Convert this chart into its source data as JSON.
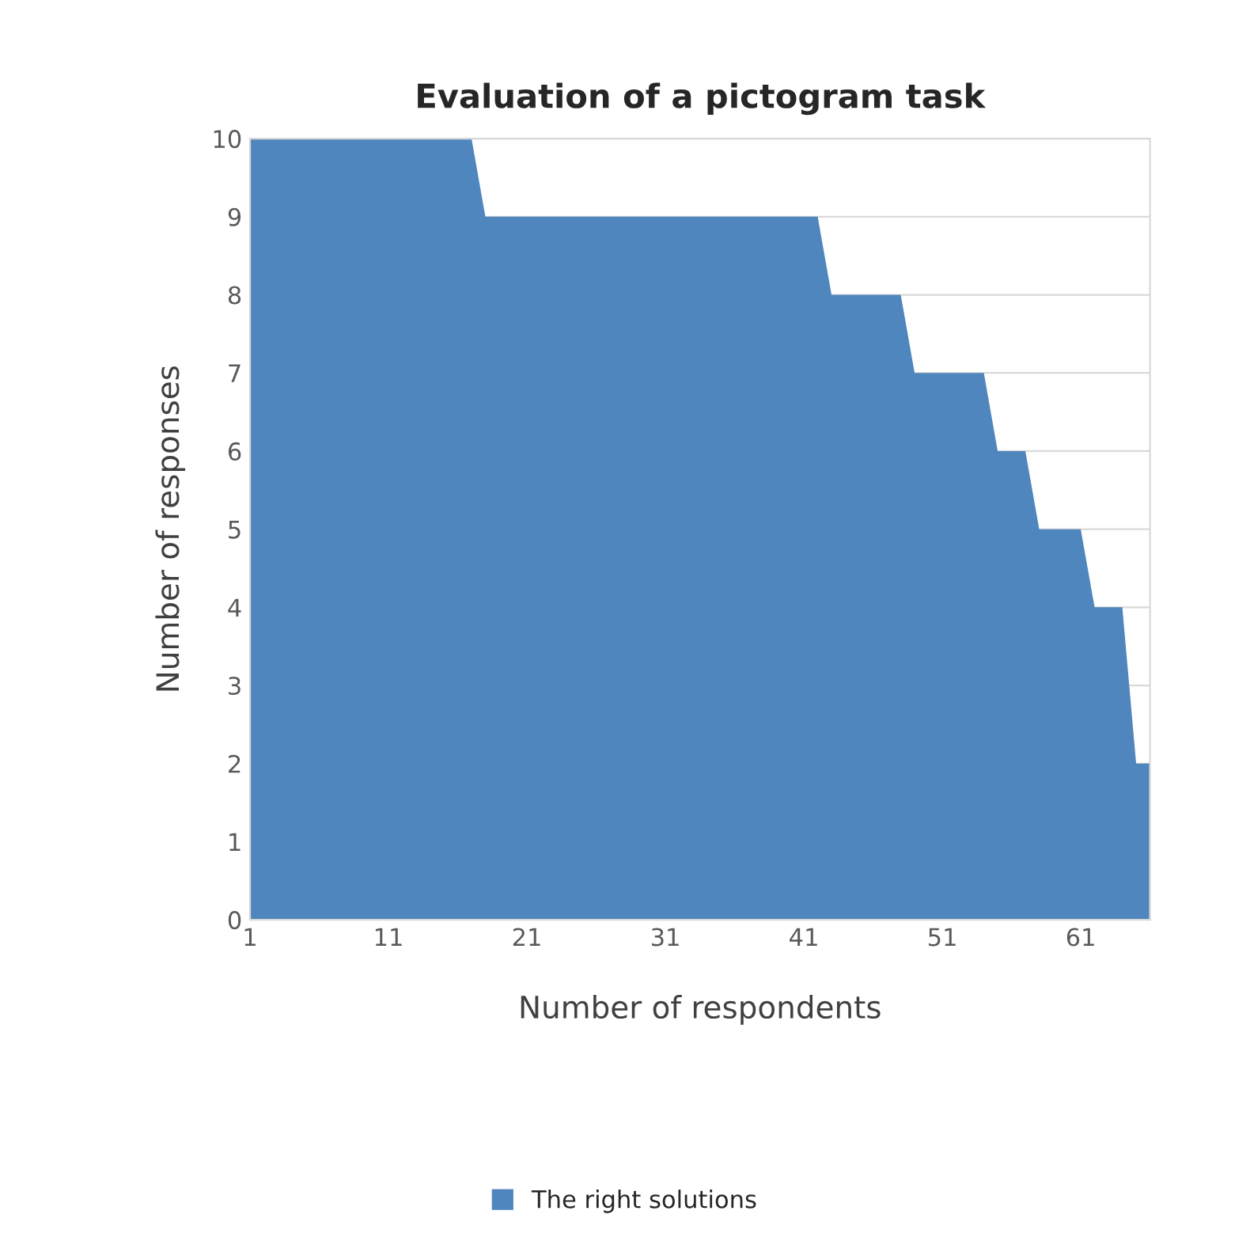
{
  "chart_data": {
    "type": "area",
    "title": "Evaluation of a pictogram task",
    "xlabel": "Number of respondents",
    "ylabel": "Number of responses",
    "x": [
      1,
      2,
      3,
      4,
      5,
      6,
      7,
      8,
      9,
      10,
      11,
      12,
      13,
      14,
      15,
      16,
      17,
      18,
      19,
      20,
      21,
      22,
      23,
      24,
      25,
      26,
      27,
      28,
      29,
      30,
      31,
      32,
      33,
      34,
      35,
      36,
      37,
      38,
      39,
      40,
      41,
      42,
      43,
      44,
      45,
      46,
      47,
      48,
      49,
      50,
      51,
      52,
      53,
      54,
      55,
      56,
      57,
      58,
      59,
      60,
      61,
      62,
      63,
      64,
      65,
      66
    ],
    "series": [
      {
        "name": "The right solutions",
        "color": "#4f86bd",
        "values": [
          10,
          10,
          10,
          10,
          10,
          10,
          10,
          10,
          10,
          10,
          10,
          10,
          10,
          10,
          10,
          10,
          10,
          9,
          9,
          9,
          9,
          9,
          9,
          9,
          9,
          9,
          9,
          9,
          9,
          9,
          9,
          9,
          9,
          9,
          9,
          9,
          9,
          9,
          9,
          9,
          9,
          9,
          8,
          8,
          8,
          8,
          8,
          8,
          7,
          7,
          7,
          7,
          7,
          7,
          6,
          6,
          6,
          5,
          5,
          5,
          5,
          4,
          4,
          4,
          2,
          2
        ]
      }
    ],
    "xlim": [
      1,
      66
    ],
    "xticks": [
      1,
      11,
      21,
      31,
      41,
      51,
      61
    ],
    "ylim": [
      0,
      10
    ],
    "yticks": [
      0,
      1,
      2,
      3,
      4,
      5,
      6,
      7,
      8,
      9,
      10
    ],
    "grid": "y",
    "legend": "bottom"
  }
}
